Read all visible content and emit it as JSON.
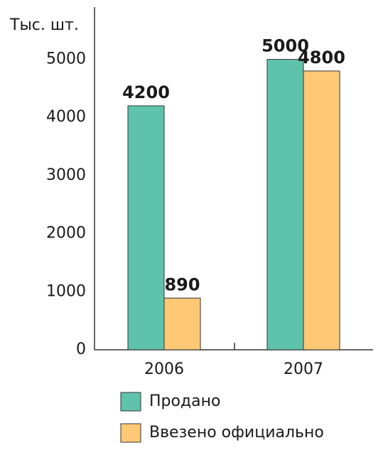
{
  "chart_data": {
    "type": "bar",
    "y_label": "Тыс. шт.",
    "categories": [
      "2006",
      "2007"
    ],
    "series": [
      {
        "name": "Продано",
        "color": "#5fc3ab",
        "values": [
          4200,
          5000
        ]
      },
      {
        "name": "Ввезено официально",
        "color": "#ffc875",
        "values": [
          890,
          4800
        ]
      }
    ],
    "ylim": [
      0,
      5900
    ],
    "yticks": [
      0,
      1000,
      2000,
      3000,
      4000,
      5000
    ]
  }
}
